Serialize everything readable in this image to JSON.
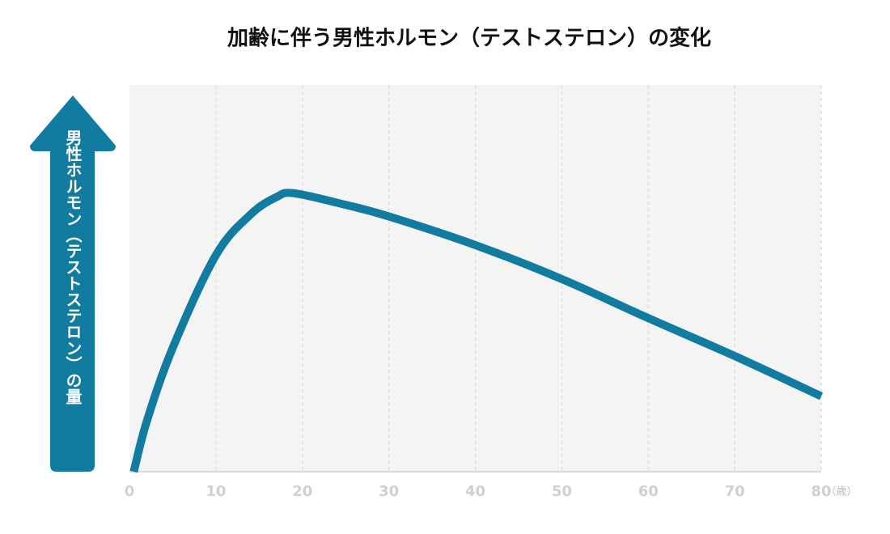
{
  "chart_data": {
    "type": "line",
    "title": "加齢に伴う男性ホルモン（テストステロン）の変化",
    "y_label": "男性ホルモン（テストステロン）の量",
    "x_unit": "（歳）",
    "x": [
      0.5,
      2,
      5,
      10,
      14,
      17,
      19,
      25,
      30,
      40,
      50,
      60,
      70,
      80
    ],
    "values": [
      0,
      13,
      32,
      56,
      66.5,
      71,
      72,
      69,
      66,
      58.6,
      49.8,
      39.7,
      29.9,
      19.5
    ],
    "color": "#127ba0",
    "xlim": [
      0,
      80
    ],
    "xticks": [
      0,
      10,
      20,
      30,
      40,
      50,
      60,
      70,
      80
    ],
    "ylim": [
      0,
      100
    ],
    "grid": true
  }
}
